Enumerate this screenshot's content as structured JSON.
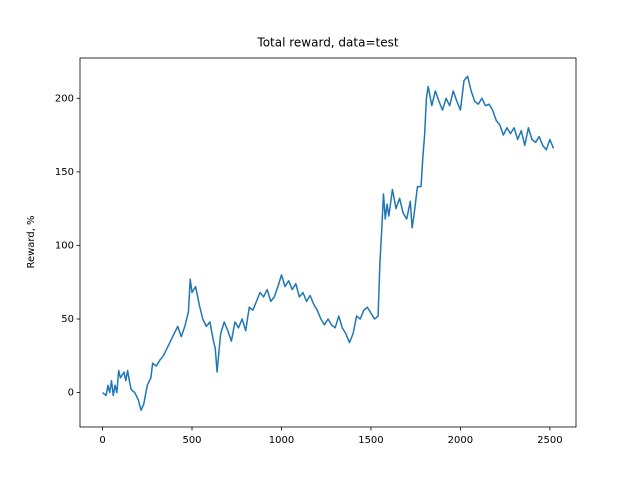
{
  "chart_data": {
    "type": "line",
    "title": "Total reward, data=test",
    "y_label": "Reward, %",
    "color": "#1f77b4",
    "x": [
      0,
      20,
      30,
      40,
      50,
      60,
      70,
      80,
      90,
      100,
      120,
      130,
      140,
      150,
      160,
      180,
      200,
      215,
      230,
      250,
      270,
      280,
      300,
      320,
      340,
      360,
      380,
      400,
      420,
      440,
      460,
      480,
      490,
      500,
      520,
      540,
      560,
      580,
      600,
      620,
      630,
      640,
      660,
      680,
      700,
      720,
      740,
      760,
      780,
      800,
      820,
      840,
      860,
      880,
      900,
      920,
      940,
      960,
      980,
      1000,
      1020,
      1040,
      1060,
      1080,
      1100,
      1120,
      1140,
      1160,
      1180,
      1200,
      1220,
      1240,
      1260,
      1280,
      1300,
      1320,
      1340,
      1360,
      1380,
      1400,
      1420,
      1440,
      1460,
      1480,
      1500,
      1520,
      1540,
      1550,
      1560,
      1570,
      1580,
      1590,
      1600,
      1620,
      1640,
      1660,
      1680,
      1700,
      1720,
      1730,
      1740,
      1760,
      1780,
      1790,
      1800,
      1810,
      1820,
      1840,
      1860,
      1880,
      1900,
      1920,
      1940,
      1960,
      1980,
      2000,
      2020,
      2040,
      2060,
      2080,
      2100,
      2120,
      2140,
      2160,
      2180,
      2200,
      2220,
      2240,
      2260,
      2280,
      2300,
      2320,
      2340,
      2360,
      2380,
      2400,
      2420,
      2440,
      2460,
      2480,
      2500,
      2520
    ],
    "values": [
      0,
      -2,
      5,
      0,
      8,
      -2,
      5,
      0,
      15,
      10,
      14,
      8,
      15,
      8,
      2,
      0,
      -5,
      -12,
      -8,
      5,
      10,
      20,
      18,
      22,
      25,
      30,
      35,
      40,
      45,
      38,
      45,
      55,
      77,
      68,
      72,
      60,
      50,
      45,
      48,
      35,
      30,
      14,
      40,
      48,
      42,
      35,
      48,
      44,
      50,
      42,
      58,
      56,
      62,
      68,
      65,
      70,
      62,
      65,
      72,
      80,
      72,
      76,
      70,
      74,
      65,
      68,
      62,
      66,
      60,
      56,
      50,
      46,
      50,
      46,
      44,
      52,
      44,
      40,
      34,
      40,
      52,
      50,
      56,
      58,
      54,
      50,
      52,
      88,
      110,
      135,
      118,
      128,
      120,
      138,
      125,
      132,
      122,
      118,
      130,
      112,
      120,
      140,
      140,
      160,
      175,
      200,
      208,
      195,
      205,
      198,
      192,
      200,
      195,
      205,
      198,
      192,
      212,
      215,
      205,
      198,
      196,
      200,
      195,
      196,
      192,
      185,
      182,
      175,
      180,
      176,
      180,
      172,
      178,
      168,
      180,
      172,
      170,
      174,
      168,
      165,
      172,
      166
    ],
    "xlim": [
      -126,
      2646
    ],
    "ylim": [
      -23.4,
      227.4
    ],
    "xticks": [
      0,
      500,
      1000,
      1500,
      2000,
      2500
    ],
    "yticks": [
      0,
      50,
      100,
      150,
      200
    ]
  }
}
